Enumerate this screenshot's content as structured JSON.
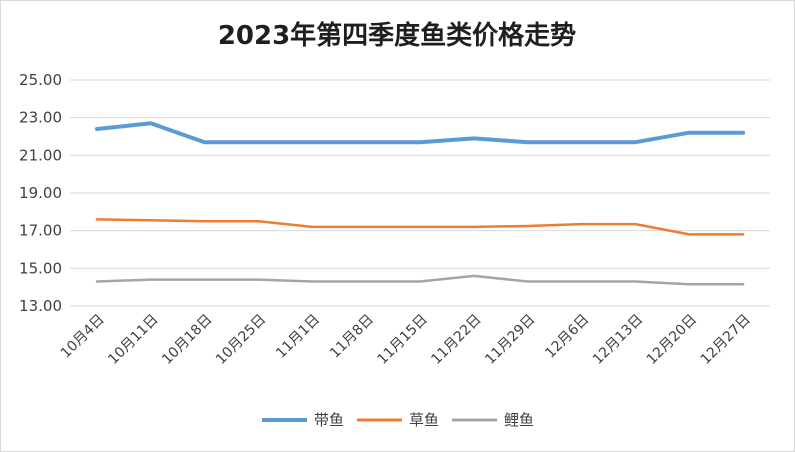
{
  "chart_data": {
    "type": "line",
    "title": "2023年第四季度鱼类价格走势",
    "xlabel": "",
    "ylabel": "",
    "categories": [
      "10月4日",
      "10月11日",
      "10月18日",
      "10月25日",
      "11月1日",
      "11月8日",
      "11月15日",
      "11月22日",
      "11月29日",
      "12月6日",
      "12月13日",
      "12月20日",
      "12月27日"
    ],
    "ylim": [
      13,
      25
    ],
    "yticks": [
      "13.00",
      "15.00",
      "17.00",
      "19.00",
      "21.00",
      "23.00",
      "25.00"
    ],
    "grid": true,
    "legend_position": "bottom",
    "series": [
      {
        "name": "带鱼",
        "color": "#5b9bd5",
        "values": [
          22.4,
          22.7,
          21.7,
          21.7,
          21.7,
          21.7,
          21.7,
          21.9,
          21.7,
          21.7,
          21.7,
          22.2,
          22.2
        ]
      },
      {
        "name": "草鱼",
        "color": "#ed7d31",
        "values": [
          17.6,
          17.55,
          17.5,
          17.5,
          17.2,
          17.2,
          17.2,
          17.2,
          17.25,
          17.35,
          17.35,
          16.8,
          16.8
        ]
      },
      {
        "name": "鲤鱼",
        "color": "#a5a5a5",
        "values": [
          14.3,
          14.4,
          14.4,
          14.4,
          14.3,
          14.3,
          14.3,
          14.6,
          14.3,
          14.3,
          14.3,
          14.15,
          14.15
        ]
      }
    ]
  }
}
